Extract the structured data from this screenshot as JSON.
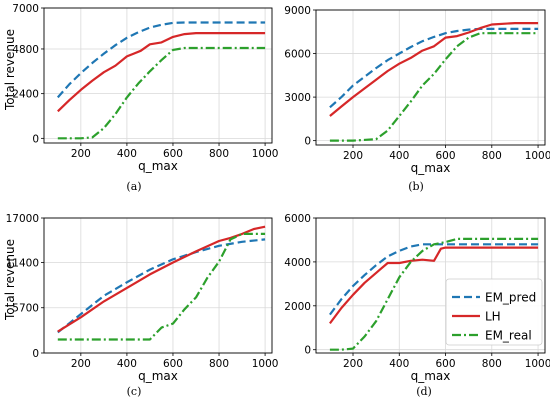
{
  "figure": {
    "series_styles": {
      "EM_pred": {
        "color": "#1f77b4",
        "dash": "dash"
      },
      "LH": {
        "color": "#d62728",
        "dash": "solid"
      },
      "EM_real": {
        "color": "#2ca02c",
        "dash": "dashdot"
      }
    },
    "legend": {
      "entries": [
        "EM_pred",
        "LH",
        "EM_real"
      ],
      "position": "lower-right",
      "panel": "d"
    }
  },
  "chart_data": [
    {
      "panel": "a",
      "caption": "(a)",
      "type": "line",
      "xlabel": "q_max",
      "ylabel": "Total revenue",
      "xlim": [
        40,
        1030
      ],
      "ylim": [
        -250,
        7000
      ],
      "xticks": [
        200,
        400,
        600,
        800,
        1000
      ],
      "xtick_labels": [
        "200",
        "400",
        "600",
        "800",
        "1000"
      ],
      "yticks": [
        0,
        2400,
        4800,
        7000
      ],
      "ytick_labels": [
        "0",
        "2400",
        "4800",
        "7000"
      ],
      "grid": true,
      "series": [
        {
          "name": "EM_pred",
          "x": [
            100,
            150,
            200,
            250,
            300,
            350,
            400,
            450,
            500,
            550,
            600,
            650,
            700,
            800,
            900,
            1000
          ],
          "y": [
            2200,
            2900,
            3500,
            4050,
            4550,
            5000,
            5400,
            5700,
            5950,
            6100,
            6200,
            6220,
            6220,
            6220,
            6220,
            6220
          ]
        },
        {
          "name": "LH",
          "x": [
            100,
            150,
            200,
            250,
            300,
            350,
            400,
            430,
            460,
            500,
            550,
            600,
            650,
            700,
            800,
            900,
            1000
          ],
          "y": [
            1450,
            2050,
            2600,
            3100,
            3550,
            3900,
            4400,
            4550,
            4700,
            5050,
            5150,
            5450,
            5600,
            5650,
            5650,
            5650,
            5650
          ]
        },
        {
          "name": "EM_real",
          "x": [
            100,
            200,
            250,
            300,
            350,
            400,
            450,
            500,
            550,
            600,
            650,
            700,
            800,
            900,
            1000
          ],
          "y": [
            0,
            0,
            50,
            550,
            1300,
            2200,
            2950,
            3600,
            4200,
            4750,
            4850,
            4850,
            4850,
            4850,
            4850
          ]
        }
      ]
    },
    {
      "panel": "b",
      "caption": "(b)",
      "type": "line",
      "xlabel": "q_max",
      "ylabel": "",
      "xlim": [
        40,
        1030
      ],
      "ylim": [
        -300,
        9000
      ],
      "xticks": [
        200,
        400,
        600,
        800,
        1000
      ],
      "xtick_labels": [
        "200",
        "400",
        "600",
        "800",
        "1000"
      ],
      "yticks": [
        0,
        3000,
        6000,
        9000
      ],
      "ytick_labels": [
        "0",
        "3000",
        "6000",
        "9000"
      ],
      "grid": true,
      "series": [
        {
          "name": "EM_pred",
          "x": [
            100,
            150,
            200,
            250,
            300,
            350,
            400,
            450,
            500,
            550,
            600,
            650,
            700,
            750,
            800,
            900,
            1000
          ],
          "y": [
            2300,
            3000,
            3800,
            4400,
            5000,
            5550,
            6000,
            6450,
            6850,
            7150,
            7400,
            7550,
            7650,
            7700,
            7700,
            7700,
            7700
          ]
        },
        {
          "name": "LH",
          "x": [
            100,
            150,
            200,
            250,
            300,
            350,
            400,
            450,
            500,
            550,
            600,
            650,
            700,
            750,
            800,
            900,
            1000
          ],
          "y": [
            1700,
            2350,
            3000,
            3600,
            4200,
            4800,
            5300,
            5700,
            6200,
            6500,
            7100,
            7200,
            7450,
            7750,
            8000,
            8100,
            8100
          ]
        },
        {
          "name": "EM_real",
          "x": [
            100,
            200,
            300,
            350,
            400,
            450,
            500,
            550,
            600,
            650,
            700,
            750,
            800,
            900,
            1000
          ],
          "y": [
            0,
            0,
            100,
            700,
            1700,
            2700,
            3800,
            4600,
            5600,
            6500,
            7100,
            7400,
            7400,
            7400,
            7400
          ]
        }
      ]
    },
    {
      "panel": "c",
      "caption": "(c)",
      "type": "line",
      "xlabel": "q_max",
      "ylabel": "Total revenue",
      "xlim": [
        40,
        1030
      ],
      "ylim": [
        0,
        17000
      ],
      "xticks": [
        200,
        400,
        600,
        800,
        1000
      ],
      "xtick_labels": [
        "200",
        "400",
        "600",
        "800",
        "1000"
      ],
      "yticks": [
        0,
        5700,
        11400,
        17000
      ],
      "ytick_labels": [
        "0",
        "5700",
        "11400",
        "17000"
      ],
      "grid": true,
      "series": [
        {
          "name": "EM_pred",
          "x": [
            100,
            200,
            300,
            400,
            500,
            600,
            700,
            800,
            900,
            1000
          ],
          "y": [
            2600,
            4900,
            7200,
            8900,
            10500,
            11800,
            12700,
            13500,
            14000,
            14300
          ]
        },
        {
          "name": "LH",
          "x": [
            100,
            200,
            300,
            400,
            500,
            600,
            700,
            800,
            850,
            900,
            950,
            1000
          ],
          "y": [
            2700,
            4500,
            6500,
            8200,
            9900,
            11400,
            12800,
            14100,
            14500,
            15000,
            15600,
            15900
          ]
        },
        {
          "name": "EM_real",
          "x": [
            100,
            200,
            300,
            400,
            500,
            550,
            600,
            650,
            700,
            750,
            800,
            850,
            900,
            1000
          ],
          "y": [
            1700,
            1700,
            1700,
            1700,
            1700,
            3200,
            3700,
            5500,
            7000,
            9500,
            11500,
            14300,
            15000,
            15000
          ]
        }
      ]
    },
    {
      "panel": "d",
      "caption": "(d)",
      "type": "line",
      "xlabel": "q_max",
      "ylabel": "",
      "xlim": [
        40,
        1030
      ],
      "ylim": [
        -150,
        6000
      ],
      "xticks": [
        200,
        400,
        600,
        800,
        1000
      ],
      "xtick_labels": [
        "200",
        "400",
        "600",
        "800",
        "1000"
      ],
      "yticks": [
        0,
        2000,
        4000,
        6000
      ],
      "ytick_labels": [
        "0",
        "2000",
        "4000",
        "6000"
      ],
      "grid": true,
      "series": [
        {
          "name": "EM_pred",
          "x": [
            100,
            150,
            200,
            250,
            300,
            350,
            400,
            450,
            500,
            550,
            600,
            700,
            800,
            900,
            1000
          ],
          "y": [
            1600,
            2300,
            2900,
            3400,
            3850,
            4250,
            4500,
            4700,
            4800,
            4800,
            4800,
            4800,
            4800,
            4800,
            4800
          ]
        },
        {
          "name": "LH",
          "x": [
            100,
            150,
            200,
            250,
            300,
            350,
            400,
            450,
            500,
            550,
            580,
            600,
            650,
            700,
            800,
            900,
            1000
          ],
          "y": [
            1200,
            1900,
            2500,
            3050,
            3500,
            3950,
            3950,
            4050,
            4100,
            4050,
            4600,
            4650,
            4650,
            4650,
            4650,
            4650,
            4650
          ]
        },
        {
          "name": "EM_real",
          "x": [
            100,
            150,
            200,
            250,
            300,
            350,
            400,
            450,
            500,
            550,
            600,
            650,
            700,
            800,
            900,
            1000
          ],
          "y": [
            0,
            0,
            50,
            600,
            1300,
            2300,
            3300,
            4000,
            4500,
            4800,
            4900,
            5050,
            5050,
            5050,
            5050,
            5050
          ]
        }
      ]
    }
  ]
}
